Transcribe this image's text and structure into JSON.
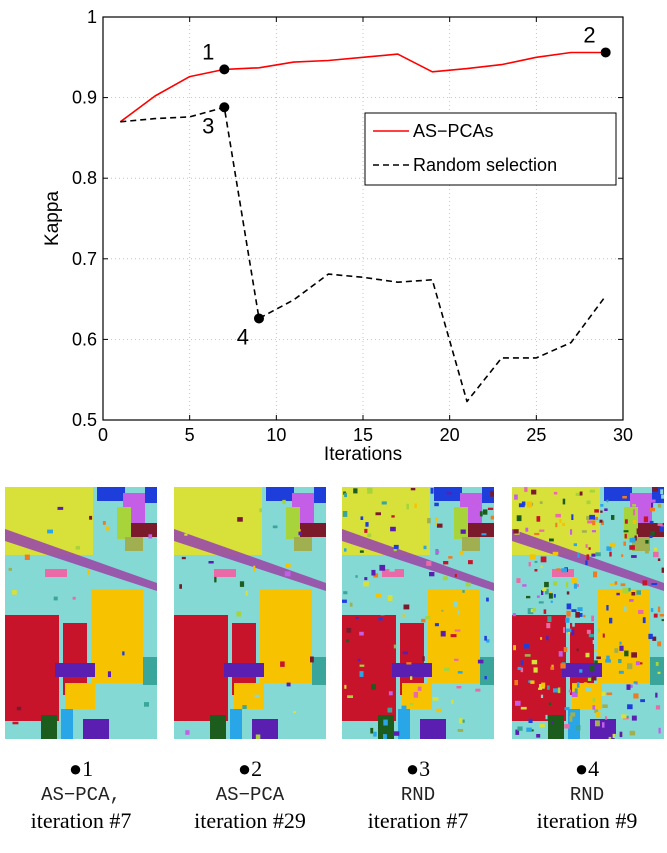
{
  "chart_data": {
    "type": "line",
    "xlabel": "Iterations",
    "ylabel": "Kappa",
    "xlim": [
      0,
      30
    ],
    "ylim": [
      0.5,
      1
    ],
    "xticks": [
      0,
      5,
      10,
      15,
      20,
      25,
      30
    ],
    "xtick_labels": [
      "0",
      "5",
      "10",
      "15",
      "20",
      "25",
      "30"
    ],
    "yticks": [
      0.5,
      0.6,
      0.7,
      0.8,
      0.9,
      1
    ],
    "ytick_labels": [
      "0.5",
      "0.6",
      "0.7",
      "0.8",
      "0.9",
      "1"
    ],
    "grid": true,
    "legend_position": "upper-right",
    "series": [
      {
        "name": "AS−PCAs",
        "color": "#ff0000",
        "style": "solid",
        "x": [
          1,
          3,
          5,
          7,
          9,
          11,
          13,
          15,
          17,
          19,
          21,
          23,
          25,
          27,
          29
        ],
        "y": [
          0.87,
          0.902,
          0.926,
          0.935,
          0.937,
          0.944,
          0.946,
          0.95,
          0.954,
          0.932,
          0.936,
          0.941,
          0.95,
          0.956,
          0.956
        ]
      },
      {
        "name": "Random selection",
        "color": "#000000",
        "style": "dashed",
        "x": [
          1,
          3,
          5,
          7,
          9,
          11,
          13,
          15,
          17,
          19,
          21,
          23,
          25,
          27,
          29
        ],
        "y": [
          0.87,
          0.874,
          0.876,
          0.888,
          0.626,
          0.649,
          0.681,
          0.677,
          0.671,
          0.674,
          0.523,
          0.577,
          0.577,
          0.596,
          0.654
        ]
      }
    ],
    "annotations": [
      {
        "label": "1",
        "x": 7,
        "y": 0.935,
        "placement": "top-left"
      },
      {
        "label": "2",
        "x": 29,
        "y": 0.956,
        "placement": "top-left"
      },
      {
        "label": "3",
        "x": 7,
        "y": 0.888,
        "placement": "bottom-left"
      },
      {
        "label": "4",
        "x": 9,
        "y": 0.626,
        "placement": "bottom-left"
      }
    ]
  },
  "maps": [
    {
      "marker": "●1",
      "method": "AS−PCA,",
      "iteration": "iteration #7"
    },
    {
      "marker": "●2",
      "method": "AS−PCA",
      "iteration": "iteration #29"
    },
    {
      "marker": "●3",
      "method": "RND",
      "iteration": "iteration #7"
    },
    {
      "marker": "●4",
      "method": "RND",
      "iteration": "iteration #9"
    }
  ]
}
